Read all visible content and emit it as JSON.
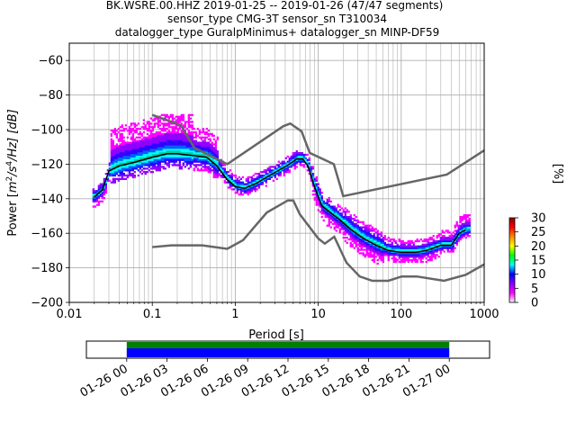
{
  "title_lines": [
    "BK.WSRE.00.HHZ   2019-01-25 -- 2019-01-26  (47/47 segments)",
    "sensor_type CMG-3T sensor_sn T310034",
    "datalogger_type GuralpMinimus+ datalogger_sn MINP-DF59"
  ],
  "chart_data": [
    {
      "type": "heatmap",
      "subtype": "probabilistic power spectral density",
      "xlabel": "Period [s]",
      "ylabel": "Power [$m^2/s^4/Hz$] [dB]",
      "ylabel_parts": {
        "prefix": "Power [",
        "m": "m",
        "exp2": "2",
        "mid": "/s",
        "exp4": "4",
        "suffix": "/Hz] [dB]"
      },
      "x_scale": "log",
      "xlim": [
        0.01,
        1000
      ],
      "ylim": [
        -200,
        -50
      ],
      "x_ticks": [
        0.01,
        0.1,
        1,
        10,
        100,
        1000
      ],
      "x_tick_labels": [
        "0.01",
        "0.1",
        "1",
        "10",
        "100",
        "1000"
      ],
      "y_ticks": [
        -200,
        -180,
        -160,
        -140,
        -120,
        -100,
        -80,
        -60
      ],
      "y_tick_labels": [
        "−200",
        "−180",
        "−160",
        "−140",
        "−120",
        "−100",
        "−80",
        "−60"
      ],
      "grid": true,
      "colorbar": {
        "label": "[%]",
        "range": [
          0,
          30
        ],
        "ticks": [
          0,
          5,
          10,
          15,
          20,
          25,
          30
        ],
        "tick_labels": [
          "0",
          "5",
          "10",
          "15",
          "20",
          "25",
          "30"
        ],
        "colors": [
          "#ffffff",
          "#ff00ff",
          "#8800ff",
          "#0000ff",
          "#00ffff",
          "#00ff00",
          "#ffff00",
          "#ff8800",
          "#ff0000",
          "#880000"
        ]
      },
      "mean_curve": {
        "color": "#000000",
        "x": [
          0.02,
          0.025,
          0.03,
          0.04,
          0.06,
          0.1,
          0.15,
          0.2,
          0.3,
          0.45,
          0.6,
          0.8,
          1,
          1.3,
          1.8,
          2.5,
          3.5,
          4.5,
          5.5,
          6.5,
          7.5,
          9,
          11,
          14,
          18,
          25,
          35,
          50,
          70,
          100,
          150,
          200,
          300,
          400,
          500,
          600
        ],
        "y": [
          -139,
          -135,
          -124,
          -121,
          -119,
          -116,
          -114,
          -114,
          -115,
          -116,
          -121,
          -129,
          -133,
          -134,
          -131,
          -127,
          -123,
          -120,
          -117,
          -117,
          -121,
          -133,
          -144,
          -148,
          -152,
          -158,
          -163,
          -167,
          -170,
          -171,
          -171,
          -170,
          -167,
          -167,
          -160,
          -158
        ]
      },
      "noise_models": [
        {
          "name": "NHNM",
          "color": "#666666",
          "x": [
            0.1,
            0.22,
            0.32,
            0.8,
            3.8,
            4.6,
            6.3,
            7.9,
            15.4,
            20,
            354.8,
            1000
          ],
          "y": [
            -91.5,
            -97.4,
            -110.5,
            -120,
            -98,
            -96.5,
            -101,
            -113.5,
            -120,
            -138.5,
            -126,
            -112
          ]
        },
        {
          "name": "NLNM",
          "color": "#666666",
          "x": [
            0.1,
            0.17,
            0.4,
            0.8,
            1.24,
            2.4,
            4.3,
            5,
            6,
            10,
            12,
            15.6,
            21.9,
            31.6,
            45,
            70,
            101,
            154,
            328,
            600,
            1000
          ],
          "y": [
            -168,
            -167,
            -167,
            -169,
            -164,
            -148,
            -141,
            -141,
            -149,
            -163,
            -166,
            -162,
            -177,
            -185,
            -187.5,
            -187.5,
            -185,
            -185,
            -187.5,
            -184,
            -178
          ]
        }
      ]
    },
    {
      "type": "bar",
      "subtype": "data availability timeline",
      "x_tick_labels": [
        "01-26 00",
        "01-26 03",
        "01-26 06",
        "01-26 09",
        "01-26 12",
        "01-26 15",
        "01-26 18",
        "01-26 21",
        "01-27 00"
      ],
      "xlim_hours": [
        -3,
        27
      ],
      "series": [
        {
          "range_hours": [
            0,
            24
          ],
          "color": "#008000"
        },
        {
          "range_hours": [
            0,
            24
          ],
          "color": "#0000ff"
        }
      ]
    }
  ]
}
